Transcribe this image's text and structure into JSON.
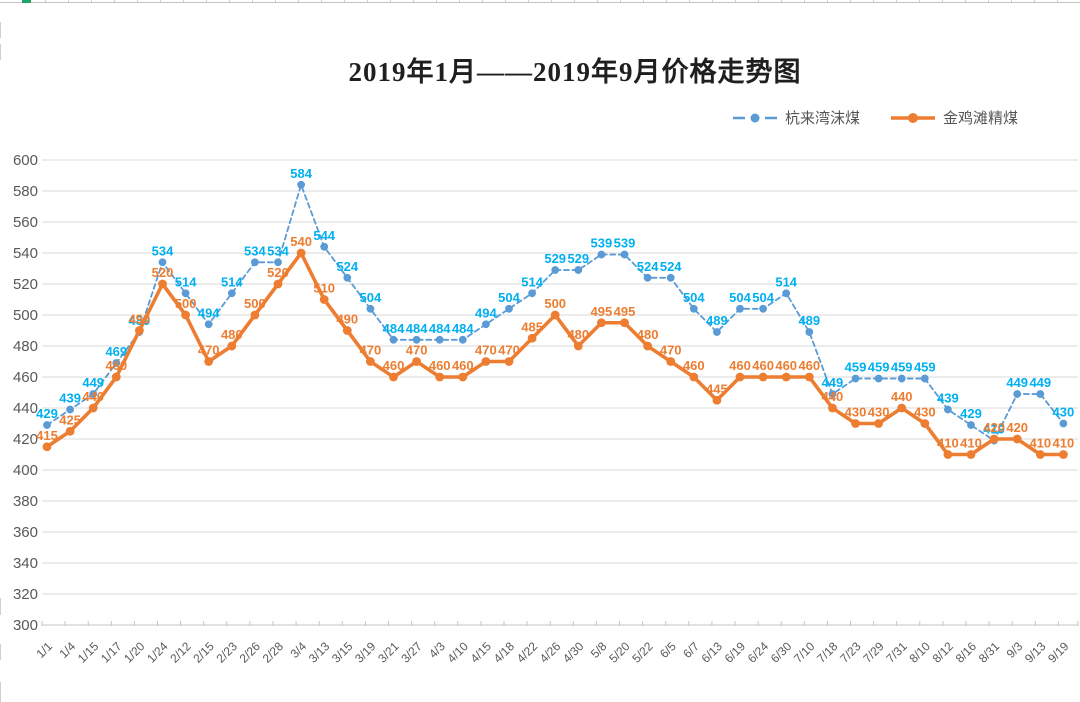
{
  "title": {
    "text": "2019年1月——2019年9月价格走势图"
  },
  "legend": {
    "items": [
      {
        "label": "杭来湾沫煤",
        "color": "#5B9BD5",
        "marker": "dashed-line-dot"
      },
      {
        "label": "金鸡滩精煤",
        "color": "#ED7D31",
        "marker": "solid-line-dot"
      }
    ]
  },
  "page": {
    "background": "#FFFFFF",
    "gridline_color": "#D9D9D9",
    "axis_text_color": "#595959",
    "spreadsheet_line_color": "#CFCFCF",
    "excel_green_accent": "#21A366"
  },
  "chart_data": {
    "type": "line",
    "title": "2019年1月——2019年9月价格走势图",
    "categories": [
      "1/1",
      "1/4",
      "1/15",
      "1/17",
      "1/20",
      "1/24",
      "2/12",
      "2/15",
      "2/23",
      "2/26",
      "2/28",
      "3/4",
      "3/13",
      "3/15",
      "3/19",
      "3/21",
      "3/27",
      "4/3",
      "4/10",
      "4/15",
      "4/18",
      "4/22",
      "4/26",
      "4/30",
      "5/8",
      "5/20",
      "5/22",
      "6/5",
      "6/7",
      "6/13",
      "6/19",
      "6/24",
      "6/30",
      "7/10",
      "7/18",
      "7/23",
      "7/29",
      "7/31",
      "8/10",
      "8/12",
      "8/16",
      "8/31",
      "9/3",
      "9/13",
      "9/19"
    ],
    "series": [
      {
        "name": "杭来湾沫煤",
        "color": "#5B9BD5",
        "label_color": "#00B0F0",
        "line_style": "dashed",
        "values": [
          429,
          439,
          449,
          469,
          489,
          534,
          514,
          494,
          514,
          534,
          534,
          584,
          544,
          524,
          504,
          484,
          484,
          484,
          484,
          494,
          504,
          514,
          529,
          529,
          539,
          539,
          524,
          524,
          504,
          489,
          504,
          504,
          514,
          489,
          449,
          459,
          459,
          459,
          459,
          439,
          429,
          419,
          449,
          449,
          430
        ]
      },
      {
        "name": "金鸡滩精煤",
        "color": "#ED7D31",
        "label_color": "#ED7D31",
        "line_style": "solid",
        "values": [
          415,
          425,
          440,
          460,
          490,
          520,
          500,
          470,
          480,
          500,
          520,
          540,
          510,
          490,
          470,
          460,
          470,
          460,
          460,
          470,
          470,
          485,
          500,
          480,
          495,
          495,
          480,
          470,
          460,
          445,
          460,
          460,
          460,
          460,
          440,
          430,
          430,
          440,
          430,
          410,
          410,
          420,
          420,
          410,
          410
        ]
      }
    ],
    "ylim": [
      300,
      600
    ],
    "yticks": [
      600,
      580,
      560,
      540,
      520,
      500,
      480,
      460,
      440,
      420,
      400,
      380,
      360,
      340,
      320,
      300
    ],
    "grid": true,
    "data_labels": true,
    "legend_position": "top-right",
    "xlabel": "",
    "ylabel": ""
  }
}
